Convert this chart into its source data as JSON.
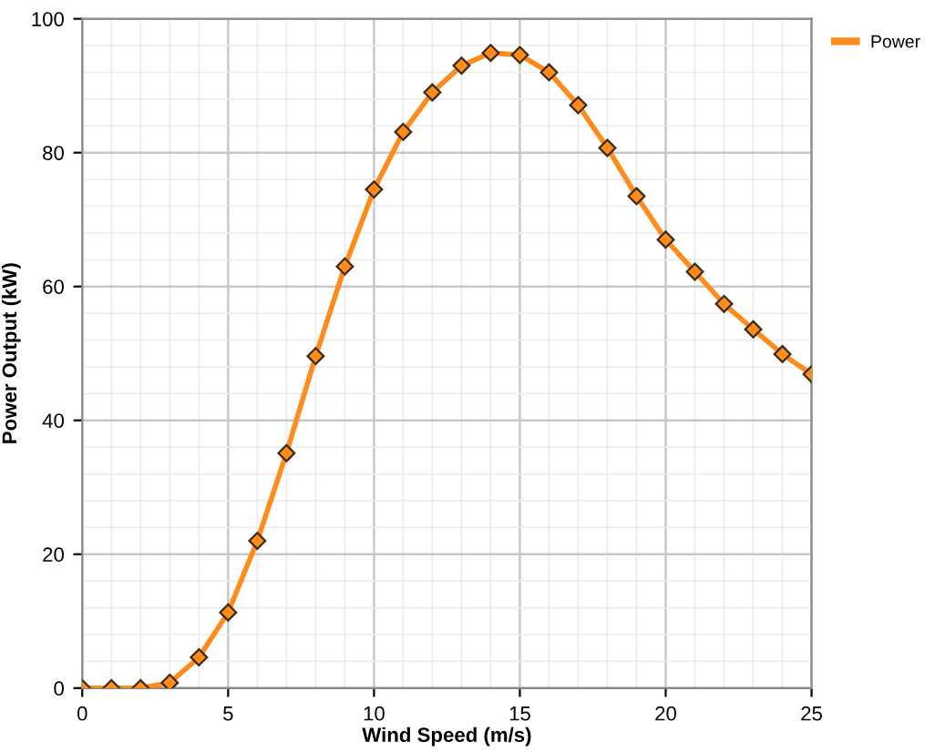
{
  "chart_data": {
    "type": "line",
    "xlabel": "Wind Speed (m/s)",
    "ylabel": "Power Output (kW)",
    "x": [
      0,
      1,
      2,
      3,
      4,
      5,
      6,
      7,
      8,
      9,
      10,
      11,
      12,
      13,
      14,
      15,
      16,
      17,
      18,
      19,
      20,
      21,
      22,
      23,
      24,
      25
    ],
    "series": [
      {
        "name": "Power",
        "color": "#ff8c1a",
        "values": [
          0,
          0,
          0,
          0.8,
          4.6,
          11.3,
          22,
          35.1,
          49.6,
          63,
          74.5,
          83.1,
          89,
          93,
          94.9,
          94.6,
          92,
          87.1,
          80.7,
          73.5,
          67,
          62.2,
          57.4,
          53.6,
          49.9,
          46.9
        ]
      }
    ],
    "xlim": [
      0,
      25
    ],
    "ylim": [
      0,
      100
    ],
    "xticks": [
      0,
      5,
      10,
      15,
      20,
      25
    ],
    "yticks": [
      0,
      20,
      40,
      60,
      80,
      100
    ],
    "grid": true,
    "legend": "top right",
    "marker": "diamond",
    "line_style": "solid"
  }
}
